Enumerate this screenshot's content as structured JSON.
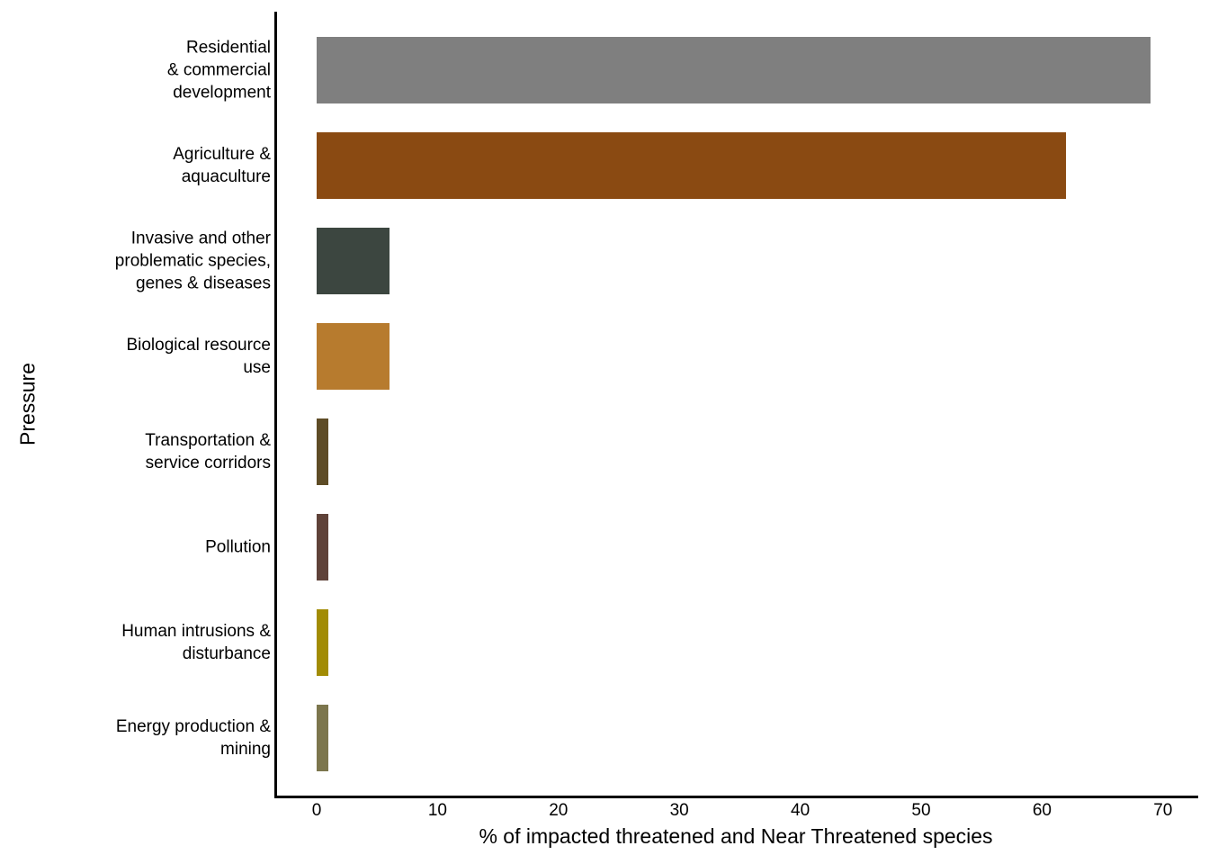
{
  "figure": {
    "background_color": "#ffffff",
    "axis_color": "#000000",
    "text_color": "#000000"
  },
  "chart_data": {
    "type": "bar",
    "orientation": "horizontal",
    "title": "",
    "xlabel": "% of impacted threatened and Near Threatened species",
    "ylabel": "Pressure",
    "xlim": [
      0,
      72
    ],
    "x_ticks": [
      0,
      10,
      20,
      30,
      40,
      50,
      60,
      70
    ],
    "grid": false,
    "legend": "none",
    "categories": [
      "Residential\n& commercial\ndevelopment",
      "Agriculture &\naquaculture",
      "Invasive and other\nproblematic species,\ngenes & diseases",
      "Biological resource\nuse",
      "Transportation &\nservice corridors",
      "Pollution",
      "Human intrusions &\ndisturbance",
      "Energy production &\nmining"
    ],
    "values": [
      69,
      62,
      6,
      6,
      1,
      1,
      1,
      1
    ],
    "bar_colors": [
      "#7F7F7F",
      "#8A4A12",
      "#3C4640",
      "#B77B2E",
      "#5E4C26",
      "#5F4239",
      "#A28C04",
      "#7C764D"
    ]
  }
}
